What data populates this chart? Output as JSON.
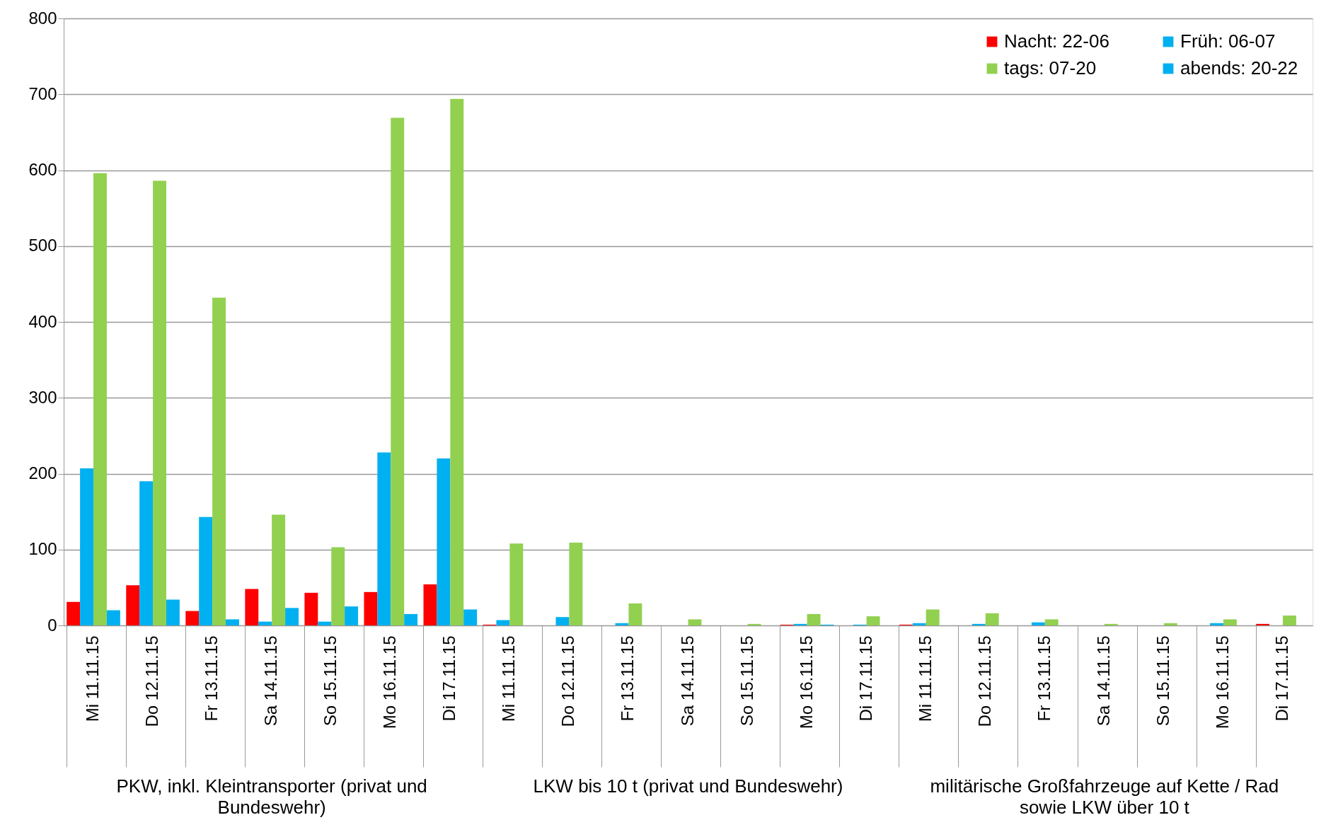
{
  "chart_data": {
    "type": "bar",
    "categories": [
      "Mi 11.11.15",
      "Do 12.11.15",
      "Fr 13.11.15",
      "Sa 14.11.15",
      "So 15.11.15",
      "Mo 16.11.15",
      "Di 17.11.15",
      "Mi 11.11.15",
      "Do 12.11.15",
      "Fr 13.11.15",
      "Sa 14.11.15",
      "So 15.11.15",
      "Mo 16.11.15",
      "Di 17.11.15",
      "Mi 11.11.15",
      "Do 12.11.15",
      "Fr 13.11.15",
      "Sa 14.11.15",
      "So 15.11.15",
      "Mo 16.11.15",
      "Di 17.11.15"
    ],
    "series": [
      {
        "name": "Nacht: 22-06",
        "color": "#ff0000",
        "values": [
          31,
          53,
          19,
          48,
          43,
          44,
          54,
          1,
          0,
          0,
          0,
          0,
          1,
          0,
          1,
          0,
          0,
          0,
          0,
          0,
          2
        ]
      },
      {
        "name": "Früh: 06-07",
        "color": "#00b0f0",
        "values": [
          207,
          190,
          143,
          5,
          5,
          228,
          220,
          7,
          11,
          3,
          0,
          0,
          2,
          1,
          3,
          2,
          4,
          0,
          0,
          3,
          0
        ]
      },
      {
        "name": "tags: 07-20",
        "color": "#92d050",
        "values": [
          596,
          586,
          432,
          146,
          103,
          669,
          694,
          108,
          109,
          29,
          8,
          2,
          15,
          12,
          21,
          16,
          8,
          2,
          3,
          8,
          13
        ]
      },
      {
        "name": "abends: 20-22",
        "color": "#00b0f0",
        "values": [
          20,
          34,
          8,
          23,
          25,
          15,
          21,
          0,
          0,
          0,
          0,
          0,
          1,
          0,
          0,
          0,
          0,
          0,
          0,
          0,
          0
        ]
      }
    ],
    "annotations": [
      "PKW, inkl. Kleintransporter (privat und Bundeswehr)",
      "LKW bis 10 t (privat und Bundeswehr)",
      "militärische Großfahrzeuge auf Kette / Rad sowie LKW über 10 t"
    ],
    "ylim": [
      0,
      800
    ],
    "yticks": [
      0,
      100,
      200,
      300,
      400,
      500,
      600,
      700,
      800
    ],
    "grid": "y",
    "legend": "top right"
  }
}
